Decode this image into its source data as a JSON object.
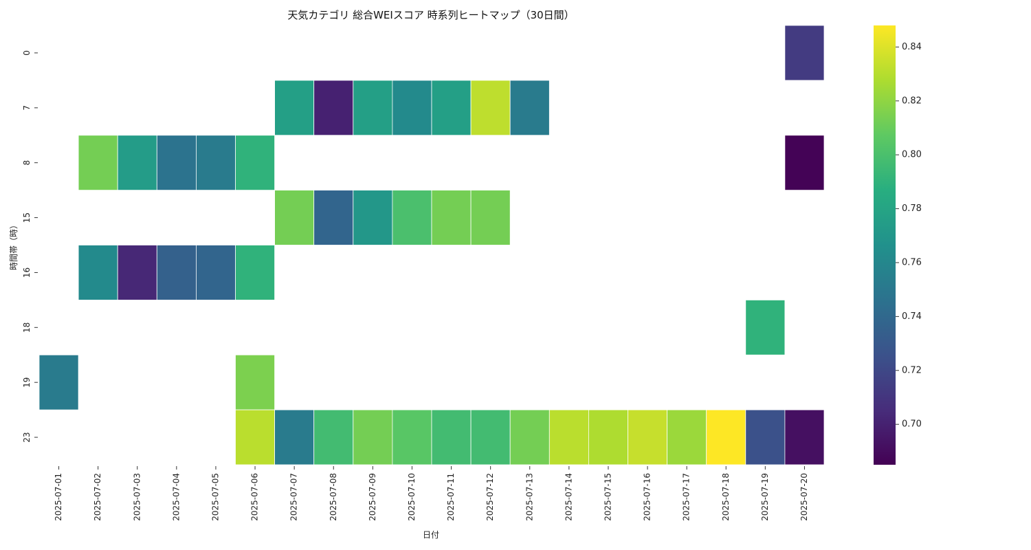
{
  "chart_data": {
    "type": "heatmap",
    "title": "天気カテゴリ 総合WEIスコア 時系列ヒートマップ（30日間）",
    "xlabel": "日付",
    "ylabel": "時間帯（時）",
    "x": [
      "2025-07-01",
      "2025-07-02",
      "2025-07-03",
      "2025-07-04",
      "2025-07-05",
      "2025-07-06",
      "2025-07-07",
      "2025-07-08",
      "2025-07-09",
      "2025-07-10",
      "2025-07-11",
      "2025-07-12",
      "2025-07-13",
      "2025-07-14",
      "2025-07-15",
      "2025-07-16",
      "2025-07-17",
      "2025-07-18",
      "2025-07-19",
      "2025-07-20"
    ],
    "y": [
      "0",
      "7",
      "8",
      "15",
      "16",
      "18",
      "19",
      "23"
    ],
    "values": [
      [
        null,
        null,
        null,
        null,
        null,
        null,
        null,
        null,
        null,
        null,
        null,
        null,
        null,
        null,
        null,
        null,
        null,
        null,
        null,
        0.713
      ],
      [
        null,
        null,
        null,
        null,
        null,
        null,
        0.776,
        0.7,
        0.776,
        0.762,
        0.776,
        0.832,
        0.752,
        null,
        null,
        null,
        null,
        null,
        null,
        null
      ],
      [
        null,
        0.813,
        0.774,
        0.747,
        0.752,
        0.79,
        null,
        null,
        null,
        null,
        null,
        null,
        null,
        null,
        null,
        null,
        null,
        null,
        null,
        0.686
      ],
      [
        null,
        null,
        null,
        null,
        null,
        null,
        0.813,
        0.738,
        0.771,
        0.8,
        0.813,
        0.813,
        null,
        null,
        null,
        null,
        null,
        null,
        null,
        null
      ],
      [
        null,
        0.762,
        0.703,
        0.735,
        0.738,
        0.79,
        null,
        null,
        null,
        null,
        null,
        null,
        null,
        null,
        null,
        null,
        null,
        null,
        null,
        null
      ],
      [
        null,
        null,
        null,
        null,
        null,
        null,
        null,
        null,
        null,
        null,
        null,
        null,
        null,
        null,
        null,
        null,
        null,
        null,
        0.79,
        null
      ],
      [
        0.752,
        null,
        null,
        null,
        null,
        0.815,
        null,
        null,
        null,
        null,
        null,
        null,
        null,
        null,
        null,
        null,
        null,
        null,
        null,
        null
      ],
      [
        null,
        null,
        null,
        null,
        null,
        0.831,
        0.752,
        0.797,
        0.813,
        0.805,
        0.797,
        0.797,
        0.813,
        0.831,
        0.828,
        0.834,
        0.823,
        0.848,
        0.725,
        0.692
      ]
    ],
    "colorbar": {
      "min": 0.685,
      "max": 0.848,
      "ticks": [
        0.7,
        0.72,
        0.74,
        0.76,
        0.78,
        0.8,
        0.82,
        0.84
      ],
      "tick_labels": [
        "0.70",
        "0.72",
        "0.74",
        "0.76",
        "0.78",
        "0.80",
        "0.82",
        "0.84"
      ],
      "colormap": "viridis"
    }
  }
}
